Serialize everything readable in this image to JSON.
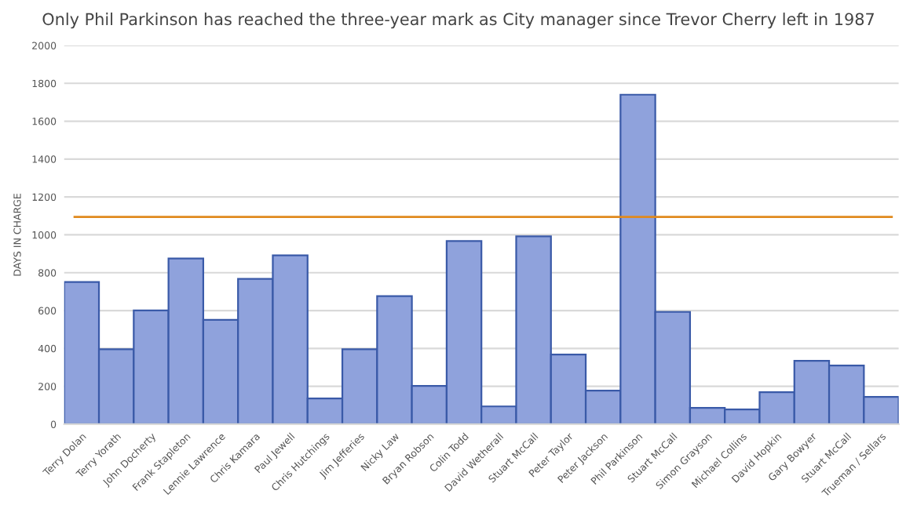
{
  "chart_data": {
    "type": "bar",
    "title": "Only Phil Parkinson has reached the three-year mark as City manager since Trevor Cherry left in 1987",
    "ylabel": "DAYS IN CHARGE",
    "categories": [
      "Terry Dolan",
      "Terry Yorath",
      "John Docherty",
      "Frank Stapleton",
      "Lennie Lawrence",
      "Chris Kamara",
      "Paul Jewell",
      "Chris Hutchings",
      "Jim Jefferies",
      "Nicky Law",
      "Bryan Robson",
      "Colin Todd",
      "David Wetherall",
      "Stuart McCall",
      "Peter Taylor",
      "Peter Jackson",
      "Phil Parkinson",
      "Stuart McCall",
      "Simon Grayson",
      "Michael Collins",
      "David Hopkin",
      "Gary Bowyer",
      "Stuart McCall",
      "Trueman / Sellars"
    ],
    "values": [
      751,
      396,
      601,
      875,
      551,
      767,
      892,
      136,
      396,
      676,
      202,
      967,
      94,
      992,
      368,
      177,
      1740,
      593,
      86,
      78,
      169,
      335,
      310,
      144
    ],
    "color": "#8fa2dc",
    "ylim": [
      0,
      2000
    ],
    "yticks": [
      0,
      200,
      400,
      600,
      800,
      1000,
      1200,
      1400,
      1600,
      1800,
      2000
    ],
    "grid": "y",
    "ref_lines": [
      {
        "axis": "y",
        "value": 1095,
        "color": "#e08a1e"
      }
    ]
  }
}
